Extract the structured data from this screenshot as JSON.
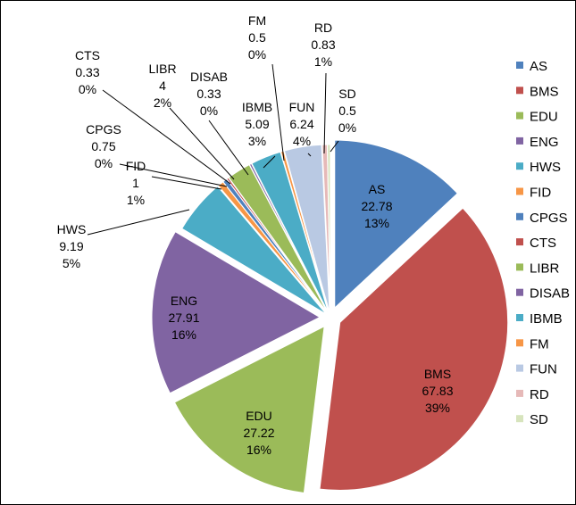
{
  "chart_data": {
    "type": "pie",
    "title": "",
    "colors": [
      "#4F81BD",
      "#C0504D",
      "#9BBB59",
      "#8064A2",
      "#4BACC6",
      "#F79646",
      "#4F81BD",
      "#C0504D",
      "#9BBB59",
      "#8064A2",
      "#4BACC6",
      "#F79646",
      "#B9C9E3",
      "#E6B9B8",
      "#D7E4BD"
    ],
    "slices": [
      {
        "name": "AS",
        "value": 22.78,
        "value_label": "22.78",
        "percent_label": "13%"
      },
      {
        "name": "BMS",
        "value": 67.83,
        "value_label": "67.83",
        "percent_label": "39%"
      },
      {
        "name": "EDU",
        "value": 27.22,
        "value_label": "27.22",
        "percent_label": "16%"
      },
      {
        "name": "ENG",
        "value": 27.91,
        "value_label": "27.91",
        "percent_label": "16%"
      },
      {
        "name": "HWS",
        "value": 9.19,
        "value_label": "9.19",
        "percent_label": "5%"
      },
      {
        "name": "FID",
        "value": 1,
        "value_label": "1",
        "percent_label": "1%"
      },
      {
        "name": "CPGS",
        "value": 0.75,
        "value_label": "0.75",
        "percent_label": "0%"
      },
      {
        "name": "CTS",
        "value": 0.33,
        "value_label": "0.33",
        "percent_label": "0%"
      },
      {
        "name": "LIBR",
        "value": 4,
        "value_label": "4",
        "percent_label": "2%"
      },
      {
        "name": "DISAB",
        "value": 0.33,
        "value_label": "0.33",
        "percent_label": "0%"
      },
      {
        "name": "IBMB",
        "value": 5.09,
        "value_label": "5.09",
        "percent_label": "3%"
      },
      {
        "name": "FM",
        "value": 0.5,
        "value_label": "0.5",
        "percent_label": "0%"
      },
      {
        "name": "FUN",
        "value": 6.24,
        "value_label": "6.24",
        "percent_label": "4%"
      },
      {
        "name": "RD",
        "value": 0.83,
        "value_label": "0.83",
        "percent_label": "1%"
      },
      {
        "name": "SD",
        "value": 0.5,
        "value_label": "0.5",
        "percent_label": "0%"
      }
    ],
    "legend_position": "right"
  }
}
